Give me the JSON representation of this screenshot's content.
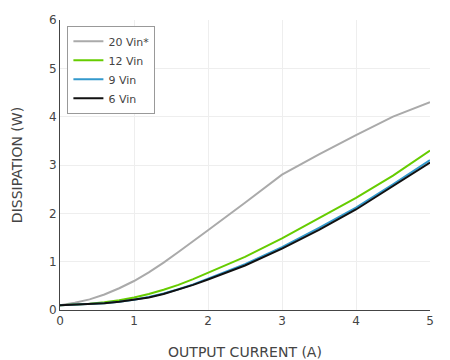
{
  "chart_data": {
    "type": "line",
    "xlabel": "OUTPUT CURRENT (A)",
    "ylabel": "DISSIPATION (W)",
    "xlim": [
      0,
      5
    ],
    "ylim": [
      0,
      6
    ],
    "xticks": [
      0,
      1,
      2,
      3,
      4,
      5
    ],
    "yticks": [
      0,
      1,
      2,
      3,
      4,
      5,
      6
    ],
    "grid": true,
    "legend": "upper left",
    "series": [
      {
        "name": "20 Vin*",
        "color": "#aaaaaa",
        "x": [
          0,
          0.1,
          0.2,
          0.4,
          0.6,
          0.8,
          1.0,
          1.2,
          1.4,
          1.6,
          1.8,
          2.0,
          2.5,
          3.0,
          3.5,
          4.0,
          4.5,
          5.0
        ],
        "values": [
          0.1,
          0.12,
          0.15,
          0.22,
          0.32,
          0.45,
          0.6,
          0.78,
          0.98,
          1.2,
          1.42,
          1.65,
          2.22,
          2.8,
          3.22,
          3.62,
          4.0,
          4.3
        ]
      },
      {
        "name": "12 Vin",
        "color": "#66cc00",
        "x": [
          0,
          0.2,
          0.4,
          0.6,
          0.8,
          1.0,
          1.2,
          1.4,
          1.6,
          1.8,
          2.0,
          2.5,
          3.0,
          3.5,
          4.0,
          4.5,
          5.0
        ],
        "values": [
          0.1,
          0.11,
          0.13,
          0.16,
          0.2,
          0.26,
          0.33,
          0.42,
          0.52,
          0.64,
          0.77,
          1.1,
          1.48,
          1.9,
          2.32,
          2.78,
          3.3
        ]
      },
      {
        "name": "9 Vin",
        "color": "#3399cc",
        "x": [
          0,
          0.2,
          0.4,
          0.6,
          0.8,
          1.0,
          1.2,
          1.4,
          1.6,
          1.8,
          2.0,
          2.5,
          3.0,
          3.5,
          4.0,
          4.5,
          5.0
        ],
        "values": [
          0.1,
          0.11,
          0.12,
          0.14,
          0.17,
          0.21,
          0.27,
          0.34,
          0.43,
          0.53,
          0.65,
          0.95,
          1.3,
          1.7,
          2.12,
          2.6,
          3.1
        ]
      },
      {
        "name": "6 Vin",
        "color": "#111111",
        "x": [
          0,
          0.2,
          0.4,
          0.6,
          0.8,
          1.0,
          1.2,
          1.4,
          1.6,
          1.8,
          2.0,
          2.5,
          3.0,
          3.5,
          4.0,
          4.5,
          5.0
        ],
        "values": [
          0.1,
          0.11,
          0.12,
          0.14,
          0.17,
          0.21,
          0.26,
          0.33,
          0.42,
          0.52,
          0.63,
          0.92,
          1.27,
          1.66,
          2.08,
          2.56,
          3.05
        ]
      }
    ]
  }
}
